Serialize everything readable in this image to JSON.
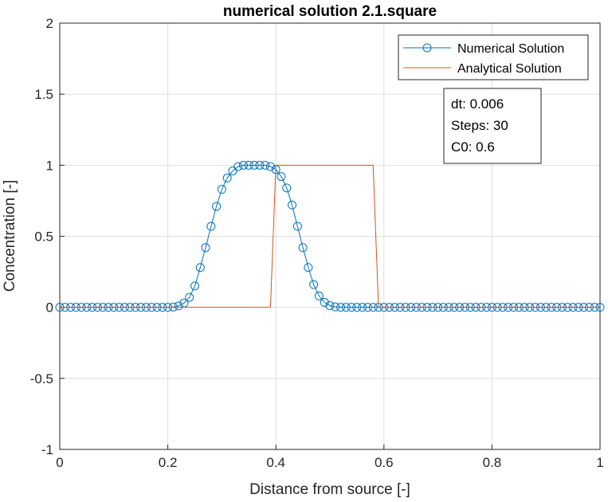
{
  "chart_data": {
    "type": "line",
    "title": "numerical solution 2.1.square",
    "xlabel": "Distance from source [-]",
    "ylabel": "Concentration [-]",
    "xlim": [
      0,
      1
    ],
    "ylim": [
      -1,
      2
    ],
    "x_ticks": [
      "0",
      "0.2",
      "0.4",
      "0.6",
      "0.8",
      "1"
    ],
    "y_ticks": [
      "-1",
      "-0.5",
      "0",
      "0.5",
      "1",
      "1.5",
      "2"
    ],
    "grid": true,
    "legend_position": "top-right",
    "series": [
      {
        "name": "Numerical Solution",
        "color": "#0072BD",
        "marker": "circle",
        "x": [
          0,
          0.01,
          0.02,
          0.03,
          0.04,
          0.05,
          0.06,
          0.07,
          0.08,
          0.09,
          0.1,
          0.11,
          0.12,
          0.13,
          0.14,
          0.15,
          0.16,
          0.17,
          0.18,
          0.19,
          0.2,
          0.21,
          0.22,
          0.23,
          0.24,
          0.25,
          0.26,
          0.27,
          0.28,
          0.29,
          0.3,
          0.31,
          0.32,
          0.33,
          0.34,
          0.35,
          0.36,
          0.37,
          0.38,
          0.39,
          0.4,
          0.41,
          0.42,
          0.43,
          0.44,
          0.45,
          0.46,
          0.47,
          0.48,
          0.49,
          0.5,
          0.51,
          0.52,
          0.53,
          0.54,
          0.55,
          0.56,
          0.57,
          0.58,
          0.59,
          0.6,
          0.61,
          0.62,
          0.63,
          0.64,
          0.65,
          0.66,
          0.67,
          0.68,
          0.69,
          0.7,
          0.71,
          0.72,
          0.73,
          0.74,
          0.75,
          0.76,
          0.77,
          0.78,
          0.79,
          0.8,
          0.81,
          0.82,
          0.83,
          0.84,
          0.85,
          0.86,
          0.87,
          0.88,
          0.89,
          0.9,
          0.91,
          0.92,
          0.93,
          0.94,
          0.95,
          0.96,
          0.97,
          0.98,
          0.99,
          1
        ],
        "y": [
          0,
          0,
          0,
          0,
          0,
          0,
          0,
          0,
          0,
          0,
          0,
          0,
          0,
          0,
          0,
          0,
          0,
          0,
          0,
          0,
          0,
          0.002,
          0.01,
          0.03,
          0.07,
          0.15,
          0.28,
          0.42,
          0.57,
          0.71,
          0.83,
          0.91,
          0.96,
          0.99,
          1,
          1,
          1,
          1,
          1,
          0.99,
          0.97,
          0.92,
          0.84,
          0.72,
          0.57,
          0.42,
          0.28,
          0.16,
          0.08,
          0.035,
          0.012,
          0.003,
          0,
          0,
          0,
          0,
          0,
          0,
          0,
          0,
          0,
          0,
          0,
          0,
          0,
          0,
          0,
          0,
          0,
          0,
          0,
          0,
          0,
          0,
          0,
          0,
          0,
          0,
          0,
          0,
          0,
          0,
          0,
          0,
          0,
          0,
          0,
          0,
          0,
          0,
          0,
          0,
          0,
          0,
          0,
          0,
          0,
          0,
          0,
          0,
          0
        ]
      },
      {
        "name": "Analytical Solution",
        "color": "#D95319",
        "marker": "none",
        "x": [
          0,
          0.39,
          0.4,
          0.58,
          0.59,
          1
        ],
        "y": [
          0,
          0,
          1,
          1,
          0,
          0
        ]
      }
    ],
    "annotation": [
      "dt: 0.006",
      "Steps: 30",
      "C0: 0.6"
    ]
  }
}
